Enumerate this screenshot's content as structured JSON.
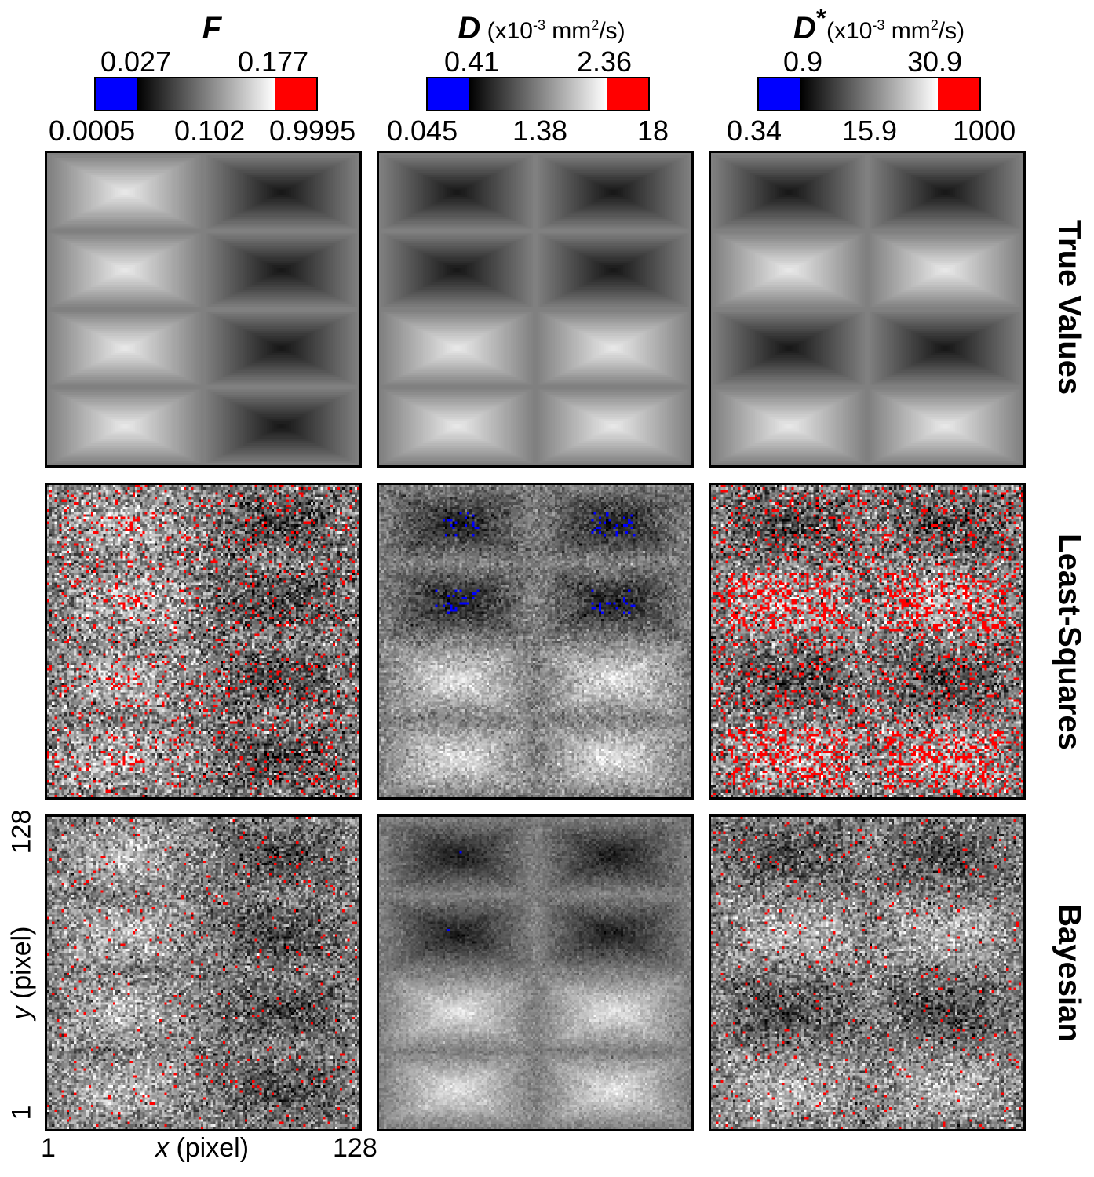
{
  "columns": [
    {
      "symbol": "F",
      "star": "",
      "unit_pre": "",
      "unit_exp": "",
      "unit_mid": "",
      "unit_exp2": "",
      "unit_post": "",
      "cb_top_left": "0.027",
      "cb_top_right": "0.177",
      "cb_bottom_left": "0.0005",
      "cb_bottom_mid": "0.102",
      "cb_bottom_right": "0.9995"
    },
    {
      "symbol": "D",
      "star": "",
      "unit_pre": "(x10",
      "unit_exp": "-3",
      "unit_mid": " mm",
      "unit_exp2": "2",
      "unit_post": "/s)",
      "cb_top_left": "0.41",
      "cb_top_right": "2.36",
      "cb_bottom_left": "0.045",
      "cb_bottom_mid": "1.38",
      "cb_bottom_right": "18"
    },
    {
      "symbol": "D",
      "star": "*",
      "unit_pre": "(x10",
      "unit_exp": "-3",
      "unit_mid": " mm",
      "unit_exp2": "2",
      "unit_post": "/s)",
      "cb_top_left": "0.9",
      "cb_top_right": "30.9",
      "cb_bottom_left": "0.34",
      "cb_bottom_mid": "15.9",
      "cb_bottom_right": "1000"
    }
  ],
  "rows": [
    "True Values",
    "Least-Squares",
    "Bayesian"
  ],
  "axes": {
    "x_label_var": "x",
    "x_label_unit": " (pixel)",
    "y_label_var": "y",
    "y_label_unit": " (pixel)",
    "x_min": "1",
    "x_max": "128",
    "y_min": "1",
    "y_max": "128"
  },
  "colors": {
    "low_out_of_range": "#0000ff",
    "high_out_of_range": "#ff0000",
    "grad_start": "#000000",
    "grad_end": "#ffffff"
  }
}
